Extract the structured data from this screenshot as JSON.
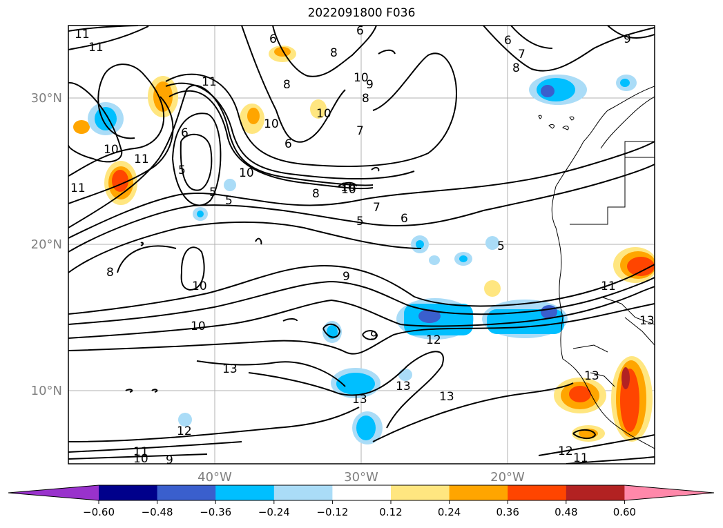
{
  "title": "2022091800 F036",
  "map": {
    "lat_labels": [
      "30°N",
      "20°N",
      "10°N"
    ],
    "lon_labels": [
      "40°W",
      "30°W",
      "20°W"
    ],
    "contour_labels": [
      "11",
      "11",
      "6",
      "6",
      "6",
      "8",
      "10",
      "9",
      "8",
      "10",
      "6",
      "7",
      "8",
      "9",
      "11",
      "10",
      "8",
      "10",
      "7",
      "6",
      "10",
      "5",
      "5",
      "5",
      "11",
      "11",
      "10",
      "8",
      "10",
      "7",
      "5",
      "6",
      "5",
      "9",
      "10",
      "8",
      "10",
      "9",
      "11",
      "13",
      "12",
      "13",
      "13",
      "13",
      "13",
      "12",
      "10",
      "9",
      "11",
      "11",
      "12",
      "13"
    ]
  },
  "colorbar": {
    "ticks": [
      "−0.60",
      "−0.48",
      "−0.36",
      "−0.24",
      "−0.12",
      "0.12",
      "0.24",
      "0.36",
      "0.48",
      "0.60"
    ],
    "colors": [
      "#9932cc",
      "#00008b",
      "#3a5fcd",
      "#00bfff",
      "#aadcf7",
      "#ffffff",
      "#ffe680",
      "#ffa500",
      "#ff4500",
      "#b22222",
      "#ff88aa"
    ]
  }
}
